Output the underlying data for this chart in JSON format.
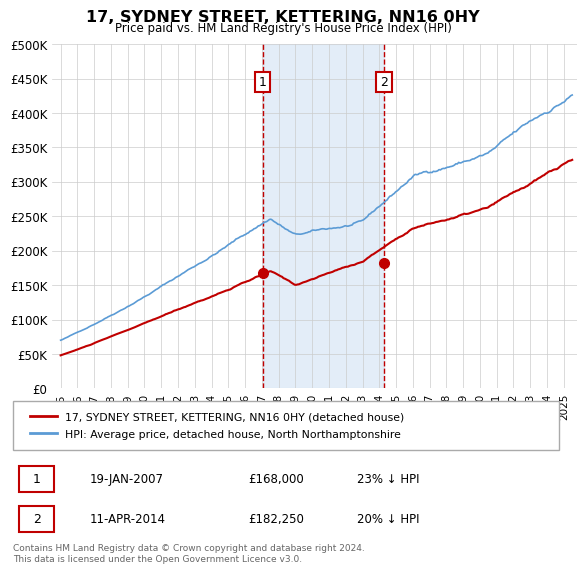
{
  "title": "17, SYDNEY STREET, KETTERING, NN16 0HY",
  "subtitle": "Price paid vs. HM Land Registry's House Price Index (HPI)",
  "ylim": [
    0,
    500000
  ],
  "yticks": [
    0,
    50000,
    100000,
    150000,
    200000,
    250000,
    300000,
    350000,
    400000,
    450000,
    500000
  ],
  "ytick_labels": [
    "£0",
    "£50K",
    "£100K",
    "£150K",
    "£200K",
    "£250K",
    "£300K",
    "£350K",
    "£400K",
    "£450K",
    "£500K"
  ],
  "hpi_color": "#5b9bd5",
  "price_color": "#c00000",
  "marker_color": "#c00000",
  "annotation_box_color": "#c00000",
  "bg_color": "#ffffff",
  "plot_bg_color": "#ffffff",
  "grid_color": "#cccccc",
  "shade_color": "#dce9f7",
  "transaction1": {
    "date": "19-JAN-2007",
    "price": 168000,
    "label": "1",
    "pct": "23%",
    "x_year": 2007.05
  },
  "transaction2": {
    "date": "11-APR-2014",
    "price": 182250,
    "label": "2",
    "pct": "20%",
    "x_year": 2014.28
  },
  "legend_line1": "17, SYDNEY STREET, KETTERING, NN16 0HY (detached house)",
  "legend_line2": "HPI: Average price, detached house, North Northamptonshire",
  "footer": "Contains HM Land Registry data © Crown copyright and database right 2024.\nThis data is licensed under the Open Government Licence v3.0.",
  "xtick_years": [
    1995,
    1996,
    1997,
    1998,
    1999,
    2000,
    2001,
    2002,
    2003,
    2004,
    2005,
    2006,
    2007,
    2008,
    2009,
    2010,
    2011,
    2012,
    2013,
    2014,
    2015,
    2016,
    2017,
    2018,
    2019,
    2020,
    2021,
    2022,
    2023,
    2024,
    2025
  ],
  "num_points": 366
}
